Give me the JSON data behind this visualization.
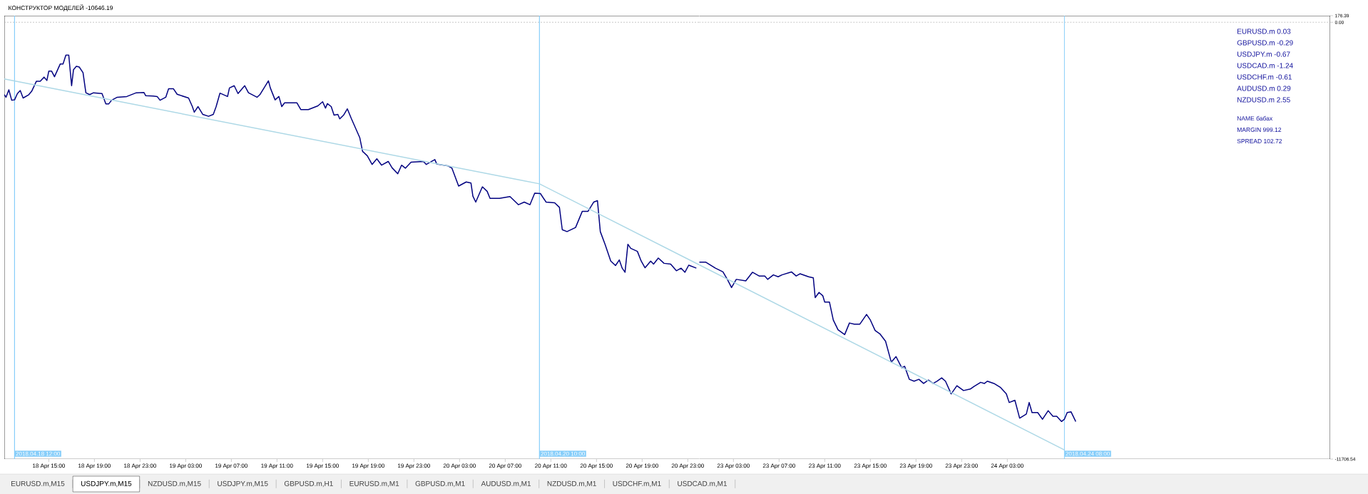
{
  "chart_data": [
    {
      "type": "line",
      "title": "КОНСТРУКТОР МОДЕЛЕЙ -10646.19",
      "xlim": [
        "2018-04-18T11:06",
        "2018-04-21T00:00"
      ],
      "ylim": [
        -11706.54,
        176.39
      ],
      "tick_labels": "x",
      "xticks": [
        {
          "value": "2018-04-18T15:00",
          "label": "18 Apr 15:00"
        },
        {
          "value": "2018-04-18T19:00",
          "label": "18 Apr 19:00"
        },
        {
          "value": "2018-04-18T23:00",
          "label": "18 Apr 23:00"
        },
        {
          "value": "2018-04-19T03:00",
          "label": "19 Apr 03:00"
        },
        {
          "value": "2018-04-19T07:00",
          "label": "19 Apr 07:00"
        },
        {
          "value": "2018-04-19T11:00",
          "label": "19 Apr 11:00"
        },
        {
          "value": "2018-04-19T15:00",
          "label": "19 Apr 15:00"
        },
        {
          "value": "2018-04-19T19:00",
          "label": "19 Apr 19:00"
        },
        {
          "value": "2018-04-19T23:00",
          "label": "19 Apr 23:00"
        },
        {
          "value": "2018-04-20T03:00",
          "label": "20 Apr 03:00"
        },
        {
          "value": "2018-04-20T07:00",
          "label": "20 Apr 07:00"
        },
        {
          "value": "2018-04-20T11:00",
          "label": "20 Apr 11:00"
        },
        {
          "value": "2018-04-20T15:00",
          "label": "20 Apr 15:00"
        },
        {
          "value": "2018-04-20T19:00",
          "label": "20 Apr 19:00"
        },
        {
          "value": "2018-04-20T23:00",
          "label": "20 Apr 23:00"
        }
      ],
      "series": [
        {
          "type": "line",
          "color": "#000080",
          "x": [
            "2018-04-18T11:06",
            "2018-04-18T11:15",
            "2018-04-18T11:30",
            "2018-04-18T11:45",
            "2018-04-18T12:00",
            "2018-04-18T12:15",
            "2018-04-18T12:30",
            "2018-04-18T12:45",
            "2018-04-18T13:15",
            "2018-04-18T13:30",
            "2018-04-18T13:55",
            "2018-04-18T14:15",
            "2018-04-18T14:35",
            "2018-04-18T14:50",
            "2018-04-18T15:00",
            "2018-04-18T15:15",
            "2018-04-18T15:30",
            "2018-04-18T16:00",
            "2018-04-18T16:15",
            "2018-04-18T16:30",
            "2018-04-18T16:45",
            "2018-04-18T17:00",
            "2018-04-18T17:10",
            "2018-04-18T17:25",
            "2018-04-18T17:40",
            "2018-04-18T18:00",
            "2018-04-18T18:15",
            "2018-04-18T18:35",
            "2018-04-18T18:55",
            "2018-04-18T19:40",
            "2018-04-18T20:00",
            "2018-04-18T20:15",
            "2018-04-18T20:30",
            "2018-04-18T21:00",
            "2018-04-18T21:50",
            "2018-04-18T22:40",
            "2018-04-18T23:20",
            "2018-04-18T23:30",
            "2018-04-19T00:10",
            "2018-04-19T00:30",
            "2018-04-19T00:45",
            "2018-04-19T01:15",
            "2018-04-19T01:30",
            "2018-04-19T01:55",
            "2018-04-19T02:15",
            "2018-04-19T03:15",
            "2018-04-19T03:35",
            "2018-04-19T03:45",
            "2018-04-19T04:05",
            "2018-04-19T04:30",
            "2018-04-19T05:00",
            "2018-04-19T05:25",
            "2018-04-19T05:40",
            "2018-04-19T06:00",
            "2018-04-19T06:40",
            "2018-04-19T06:50",
            "2018-04-19T07:15",
            "2018-04-19T07:35",
            "2018-04-19T08:10",
            "2018-04-19T08:30",
            "2018-04-19T09:15",
            "2018-04-19T09:30",
            "2018-04-19T10:15",
            "2018-04-19T10:25",
            "2018-04-19T10:50",
            "2018-04-19T11:10",
            "2018-04-19T11:25",
            "2018-04-19T11:40",
            "2018-04-19T12:45",
            "2018-04-19T13:05",
            "2018-04-19T13:45",
            "2018-04-19T14:35",
            "2018-04-19T15:00",
            "2018-04-19T15:15",
            "2018-04-19T15:25",
            "2018-04-19T15:45",
            "2018-04-19T16:00",
            "2018-04-19T16:20",
            "2018-04-19T16:30",
            "2018-04-19T16:50",
            "2018-04-19T17:10",
            "2018-04-19T17:30",
            "2018-04-19T18:15",
            "2018-04-19T18:30",
            "2018-04-19T18:55",
            "2018-04-19T19:20",
            "2018-04-19T19:45",
            "2018-04-19T20:10",
            "2018-04-19T20:45",
            "2018-04-19T21:05",
            "2018-04-19T21:35",
            "2018-04-19T21:55",
            "2018-04-19T22:15",
            "2018-04-19T22:45",
            "2018-04-19T23:50",
            "2018-04-20T00:05",
            "2018-04-20T00:50",
            "2018-04-20T01:00",
            "2018-04-20T02:00",
            "2018-04-20T02:20",
            "2018-04-20T02:55",
            "2018-04-20T03:35",
            "2018-04-20T04:00",
            "2018-04-20T04:10",
            "2018-04-20T04:25",
            "2018-04-20T05:00",
            "2018-04-20T05:25",
            "2018-04-20T05:40",
            "2018-04-20T06:30",
            "2018-04-20T07:25",
            "2018-04-20T08:10",
            "2018-04-20T08:40",
            "2018-04-20T09:10",
            "2018-04-20T09:35",
            "2018-04-20T10:05",
            "2018-04-20T10:35",
            "2018-04-20T11:20",
            "2018-04-20T11:45",
            "2018-04-20T12:00",
            "2018-04-20T12:25",
            "2018-04-20T13:10",
            "2018-04-20T13:45",
            "2018-04-20T14:15",
            "2018-04-20T14:45",
            "2018-04-20T15:05",
            "2018-04-20T15:20",
            "2018-04-20T15:45",
            "2018-04-20T16:15",
            "2018-04-20T16:40",
            "2018-04-20T17:00",
            "2018-04-20T17:15",
            "2018-04-20T17:30",
            "2018-04-20T17:45",
            "2018-04-20T18:00",
            "2018-04-20T18:35",
            "2018-04-20T18:55",
            "2018-04-20T19:15",
            "2018-04-20T19:45",
            "2018-04-20T20:00",
            "2018-04-20T20:25",
            "2018-04-20T20:55",
            "2018-04-20T21:30",
            "2018-04-20T22:00",
            "2018-04-20T22:25",
            "2018-04-20T22:45",
            "2018-04-20T23:05",
            "2018-04-20T23:45"
          ],
          "values": [
            -1940,
            -2010,
            -1810,
            -2090,
            -2080,
            -1910,
            -1830,
            -2030,
            -1940,
            -1850,
            -1580,
            -1580,
            -1470,
            -1560,
            -1310,
            -1310,
            -1460,
            -1120,
            -1120,
            -880,
            -880,
            -1700,
            -1270,
            -1180,
            -1200,
            -1350,
            -1890,
            -1940,
            -1890,
            -1910,
            -2190,
            -2190,
            -2090,
            -2010,
            -1990,
            -1890,
            -1880,
            -1970,
            -1980,
            -1990,
            -2090,
            -2010,
            -1780,
            -1780,
            -1930,
            -2030,
            -2260,
            -2410,
            -2260,
            -2470,
            -2520,
            -2470,
            -2260,
            -1900,
            -1990,
            -1760,
            -1700,
            -1910,
            -1700,
            -1890,
            -2010,
            -1940,
            -1570,
            -1760,
            -2080,
            -1990,
            -2260,
            -2160,
            -2160,
            -2340,
            -2340,
            -2240,
            -2130,
            -2300,
            -2180,
            -2260,
            -2490,
            -2470,
            -2590,
            -2490,
            -2320,
            -2570,
            -3090,
            -3460,
            -3580,
            -3810,
            -3660,
            -3830,
            -3730,
            -3900,
            -4060,
            -3830,
            -3910,
            -3750,
            -3730,
            -3810,
            -3680,
            -3800,
            -3850,
            -3910,
            -4390,
            -4280,
            -4310,
            -4660,
            -4820,
            -4410,
            -4530,
            -4720,
            -4720,
            -4670,
            -4890,
            -4820,
            -4890,
            -4580,
            -4590,
            -4820,
            -4840,
            -4960,
            -5560,
            -5610,
            -5500,
            -5070,
            -5070,
            -4820,
            -4780,
            -5610,
            -5950,
            -6400,
            -6520,
            -6370,
            -6590,
            -6700,
            -5950,
            -6060,
            -6140,
            -6400,
            -6580,
            -6400,
            -6480,
            -6320,
            -6460,
            -6480,
            -6660,
            -6590,
            -6700,
            -6510,
            -6590
          ]
        },
        {
          "type": "line",
          "color": "#add8e6",
          "x": [
            "2018-04-18T11:06",
            "2018-04-20T10:00",
            "2018-04-21T00:00"
          ],
          "values": [
            -1520,
            -4330,
            -6500
          ]
        }
      ],
      "ref_lines": [
        {
          "axis": "y",
          "value": 0,
          "color": "#a0a0a0",
          "line_style": "dashed"
        },
        {
          "axis": "x",
          "value": "2018-04-18T12:00",
          "label": "2018.04.18 12:00",
          "color": "#87cefa"
        },
        {
          "axis": "x",
          "value": "2018-04-20T10:00",
          "label": "2018.04.20 10:00",
          "color": "#87cefa"
        }
      ]
    },
    {
      "type": "line",
      "xlim": [
        "2018-04-23T00:00",
        "2018-04-25T07:18"
      ],
      "ylim": [
        -11706.54,
        176.39
      ],
      "xticks": [
        {
          "value": "2018-04-23T03:00",
          "label": "23 Apr 03:00"
        },
        {
          "value": "2018-04-23T07:00",
          "label": "23 Apr 07:00"
        },
        {
          "value": "2018-04-23T11:00",
          "label": "23 Apr 11:00"
        },
        {
          "value": "2018-04-23T15:00",
          "label": "23 Apr 15:00"
        },
        {
          "value": "2018-04-23T19:00",
          "label": "23 Apr 19:00"
        },
        {
          "value": "2018-04-23T23:00",
          "label": "23 Apr 23:00"
        },
        {
          "value": "2018-04-24T03:00",
          "label": "24 Apr 03:00"
        }
      ],
      "yticks": [
        176.39,
        {
          "value": 0,
          "label": "0.00"
        },
        -11706.54
      ],
      "series": [
        {
          "type": "line",
          "color": "#000080",
          "x": [
            "2018-04-23T00:00",
            "2018-04-23T00:35",
            "2018-04-23T01:25",
            "2018-04-23T02:05",
            "2018-04-23T02:30",
            "2018-04-23T02:50",
            "2018-04-23T03:15",
            "2018-04-23T04:05",
            "2018-04-23T04:40",
            "2018-04-23T05:15",
            "2018-04-23T05:45",
            "2018-04-23T06:00",
            "2018-04-23T06:30",
            "2018-04-23T06:55",
            "2018-04-23T07:15",
            "2018-04-23T08:05",
            "2018-04-23T08:30",
            "2018-04-23T08:50",
            "2018-04-23T09:35",
            "2018-04-23T10:00",
            "2018-04-23T10:10",
            "2018-04-23T10:30",
            "2018-04-23T10:50",
            "2018-04-23T11:00",
            "2018-04-23T11:25",
            "2018-04-23T11:45",
            "2018-04-23T12:10",
            "2018-04-23T12:45",
            "2018-04-23T13:10",
            "2018-04-23T13:35",
            "2018-04-23T14:05",
            "2018-04-23T14:40",
            "2018-04-23T15:00",
            "2018-04-23T15:25",
            "2018-04-23T15:50",
            "2018-04-23T16:20",
            "2018-04-23T16:50",
            "2018-04-23T17:15",
            "2018-04-23T17:30",
            "2018-04-23T17:45",
            "2018-04-23T18:00",
            "2018-04-23T18:25",
            "2018-04-23T18:50",
            "2018-04-23T19:15",
            "2018-04-23T19:40",
            "2018-04-23T20:05",
            "2018-04-23T20:30",
            "2018-04-23T20:50",
            "2018-04-23T21:15",
            "2018-04-23T21:35",
            "2018-04-23T22:05",
            "2018-04-23T22:35",
            "2018-04-23T23:10",
            "2018-04-23T23:45",
            "2018-04-24T00:05",
            "2018-04-24T00:40",
            "2018-04-24T01:00",
            "2018-04-24T01:15",
            "2018-04-24T01:50",
            "2018-04-24T02:25",
            "2018-04-24T02:55",
            "2018-04-24T03:10",
            "2018-04-24T03:40",
            "2018-04-24T04:05",
            "2018-04-24T04:40",
            "2018-04-24T04:55",
            "2018-04-24T05:10",
            "2018-04-24T05:40",
            "2018-04-24T06:05",
            "2018-04-24T06:35",
            "2018-04-24T07:00",
            "2018-04-24T07:20",
            "2018-04-24T07:45",
            "2018-04-24T08:00",
            "2018-04-24T08:15",
            "2018-04-24T08:35",
            "2018-04-24T09:00"
          ],
          "values": [
            -6430,
            -6430,
            -6590,
            -6690,
            -6910,
            -7110,
            -6890,
            -6930,
            -6700,
            -6800,
            -6800,
            -6890,
            -6770,
            -6820,
            -6770,
            -6690,
            -6800,
            -6740,
            -6820,
            -6850,
            -7380,
            -7240,
            -7330,
            -7500,
            -7500,
            -7980,
            -8240,
            -8370,
            -8060,
            -8090,
            -8090,
            -7830,
            -7980,
            -8260,
            -8350,
            -8550,
            -9110,
            -8960,
            -9110,
            -9260,
            -9220,
            -9570,
            -9620,
            -9570,
            -9680,
            -9590,
            -9680,
            -9620,
            -9530,
            -9620,
            -9960,
            -9740,
            -9870,
            -9830,
            -9760,
            -9650,
            -9680,
            -9620,
            -9680,
            -9790,
            -9960,
            -10190,
            -10130,
            -10610,
            -10500,
            -10190,
            -10460,
            -10460,
            -10640,
            -10410,
            -10560,
            -10560,
            -10700,
            -10640,
            -10460,
            -10440,
            -10700
          ]
        },
        {
          "type": "line",
          "color": "#add8e6",
          "x": [
            "2018-04-23T00:00",
            "2018-04-24T08:00"
          ],
          "values": [
            -6500,
            -11460
          ]
        }
      ],
      "ref_lines": [
        {
          "axis": "y",
          "value": 0,
          "color": "#a0a0a0",
          "line_style": "dashed"
        },
        {
          "axis": "x",
          "value": "2018-04-24T08:00",
          "label": "2018.04.24 08:00",
          "color": "#87cefa"
        }
      ],
      "annotations": [
        "EURUSD.m  0.03",
        "GBPUSD.m  -0.29",
        "USDJPY.m  -0.67",
        "USDCAD.m  -1.24",
        "USDCHF.m  -0.61",
        "AUDUSD.m  0.29",
        "NZDUSD.m  2.55",
        "NAME  бабах",
        "MARGIN  999.12",
        "SPREAD  102.72",
        "EURUSD.m,M15",
        "USDJPY.m,M15",
        "NZDUSD.m,M15",
        "USDJPY.m,M15",
        "GBPUSD.m,H1",
        "EURUSD.m,M1",
        "GBPUSD.m,M1",
        "AUDUSD.m,M1",
        "NZDUSD.m,M1",
        "USDCHF.m,M1",
        "USDCAD.m,M1"
      ]
    }
  ]
}
